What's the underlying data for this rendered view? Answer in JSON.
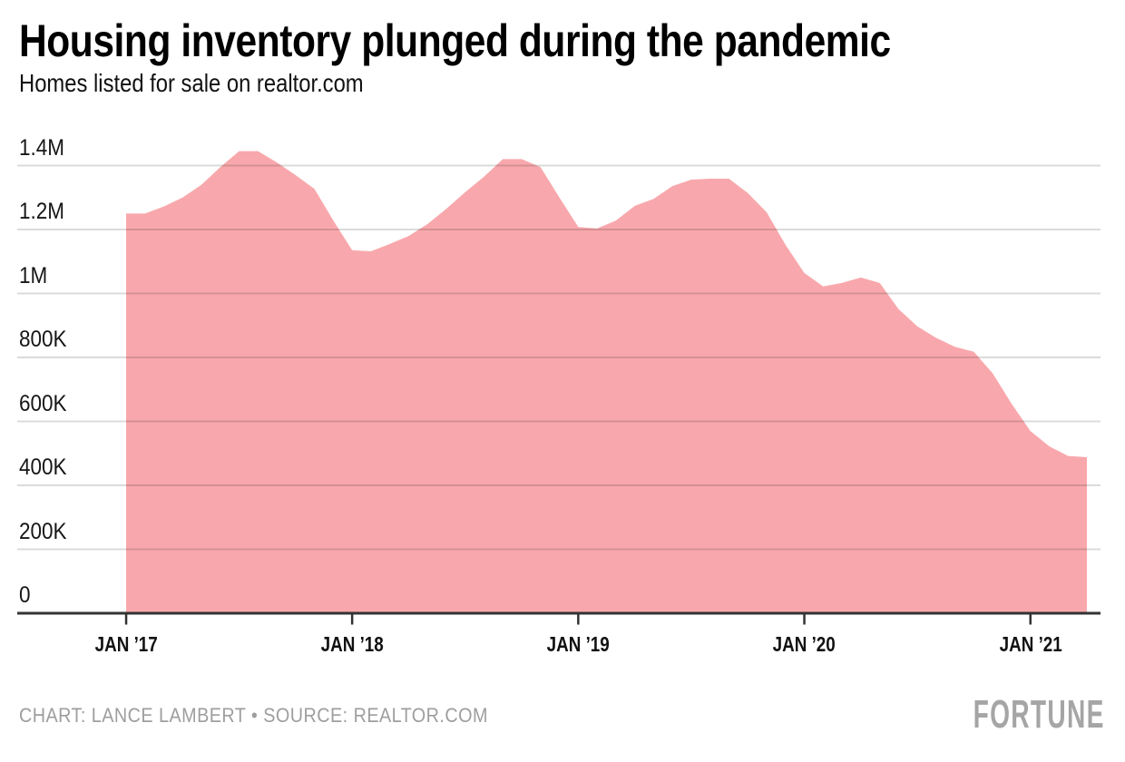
{
  "header": {
    "title": "Housing inventory plunged during the pandemic",
    "subtitle": "Homes listed for sale on realtor.com"
  },
  "footer": {
    "credit": "CHART: LANCE LAMBERT • SOURCE: REALTOR.COM",
    "brand": "FORTUNE"
  },
  "colors": {
    "area": "#F8A8AC",
    "gridline": "rgba(0,0,0,0.14)",
    "axis": "#333333",
    "title_text": "#000000",
    "credit_text": "#9E9E9E",
    "brand_text": "#A5A5A5"
  },
  "chart_data": {
    "type": "area",
    "title": "Housing inventory plunged during the pandemic",
    "subtitle": "Homes listed for sale on realtor.com",
    "ylabel": "Homes listed for sale",
    "xlabel": "",
    "ylim": [
      0,
      1400000
    ],
    "grid": true,
    "legend": false,
    "x": [
      "Jan 2017",
      "Feb 2017",
      "Mar 2017",
      "Apr 2017",
      "May 2017",
      "Jun 2017",
      "Jul 2017",
      "Aug 2017",
      "Sep 2017",
      "Oct 2017",
      "Nov 2017",
      "Dec 2017",
      "Jan 2018",
      "Feb 2018",
      "Mar 2018",
      "Apr 2018",
      "May 2018",
      "Jun 2018",
      "Jul 2018",
      "Aug 2018",
      "Sep 2018",
      "Oct 2018",
      "Nov 2018",
      "Dec 2018",
      "Jan 2019",
      "Feb 2019",
      "Mar 2019",
      "Apr 2019",
      "May 2019",
      "Jun 2019",
      "Jul 2019",
      "Aug 2019",
      "Sep 2019",
      "Oct 2019",
      "Nov 2019",
      "Dec 2019",
      "Jan 2020",
      "Feb 2020",
      "Mar 2020",
      "Apr 2020",
      "May 2020",
      "Jun 2020",
      "Jul 2020",
      "Aug 2020",
      "Sep 2020",
      "Oct 2020",
      "Nov 2020",
      "Dec 2020",
      "Jan 2021",
      "Feb 2021",
      "Mar 2021",
      "Apr 2021"
    ],
    "values": [
      1250000,
      1250000,
      1272000,
      1300000,
      1340000,
      1395000,
      1445000,
      1445000,
      1410000,
      1370000,
      1327000,
      1228000,
      1135000,
      1132000,
      1155000,
      1180000,
      1217000,
      1265000,
      1317000,
      1365000,
      1420000,
      1420000,
      1395000,
      1300000,
      1208000,
      1203000,
      1228000,
      1274000,
      1296000,
      1336000,
      1356000,
      1359000,
      1359000,
      1314000,
      1254000,
      1152000,
      1064000,
      1022000,
      1033000,
      1050000,
      1033000,
      951000,
      897000,
      861000,
      833000,
      818000,
      750000,
      655000,
      570000,
      522000,
      492000,
      488000
    ],
    "y_ticks": [
      {
        "label": "0",
        "value": 0
      },
      {
        "label": "200K",
        "value": 200000
      },
      {
        "label": "400K",
        "value": 400000
      },
      {
        "label": "600K",
        "value": 600000
      },
      {
        "label": "800K",
        "value": 800000
      },
      {
        "label": "1M",
        "value": 1000000
      },
      {
        "label": "1.2M",
        "value": 1200000
      },
      {
        "label": "1.4M",
        "value": 1400000
      }
    ],
    "x_ticks": [
      {
        "label": "JAN ’17",
        "index": 0
      },
      {
        "label": "JAN ’18",
        "index": 12
      },
      {
        "label": "JAN ’19",
        "index": 24
      },
      {
        "label": "JAN ’20",
        "index": 36
      },
      {
        "label": "JAN ’21",
        "index": 48
      }
    ]
  }
}
